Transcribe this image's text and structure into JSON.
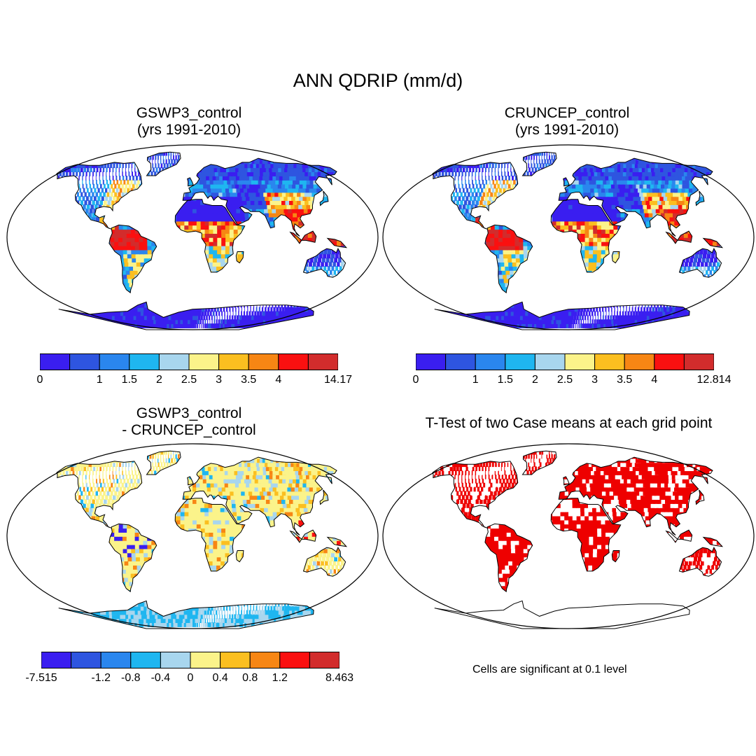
{
  "figure": {
    "title": "ANN QDRIP (mm/d)",
    "note": "Cells are significant at 0.1 level"
  },
  "palette": {
    "levels": [
      "#3a1ef0",
      "#2e55e0",
      "#2a86ee",
      "#1fb6f0",
      "#a8d6ee",
      "#fbf38a",
      "#fbbf20",
      "#f78614",
      "#fa1010",
      "#d22c2c"
    ],
    "land_white": "#ffffff",
    "signif_red": "#ee0000"
  },
  "panels": [
    {
      "id": "gswp3",
      "title_line1": "GSWP3_control",
      "title_line2": "(yrs 1991-2010)",
      "map_type": "field",
      "colorbar": {
        "labels": [
          "0",
          "",
          "1",
          "1.5",
          "2",
          "2.5",
          "3",
          "3.5",
          "4",
          "",
          "14.17"
        ]
      }
    },
    {
      "id": "cruncep",
      "title_line1": "CRUNCEP_control",
      "title_line2": "(yrs 1991-2010)",
      "map_type": "field",
      "colorbar": {
        "labels": [
          "0",
          "",
          "1",
          "1.5",
          "2",
          "2.5",
          "3",
          "3.5",
          "4",
          "",
          "12.814"
        ]
      }
    },
    {
      "id": "difference",
      "title_line1": "GSWP3_control",
      "title_line2": "- CRUNCEP_control",
      "map_type": "difference",
      "colorbar": {
        "labels": [
          "-7.515",
          "",
          "-1.2",
          "-0.8",
          "-0.4",
          "0",
          "0.4",
          "0.8",
          "1.2",
          "",
          "8.463"
        ]
      }
    },
    {
      "id": "ttest",
      "title_line1": "T-Test of two Case means at each grid point",
      "title_line2": "",
      "map_type": "significance"
    }
  ]
}
